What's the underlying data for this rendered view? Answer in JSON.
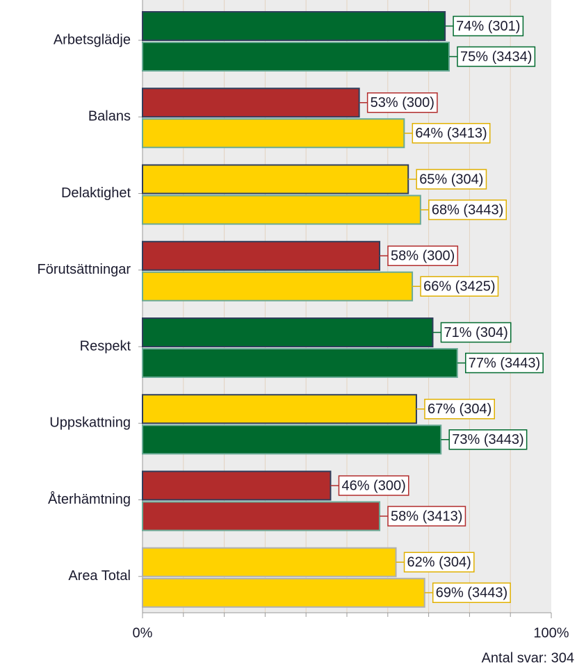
{
  "chart_data": {
    "type": "barh",
    "categories": [
      "Arbetsglädje",
      "Balans",
      "Delaktighet",
      "Förutsättningar",
      "Respekt",
      "Uppskattning",
      "Återhämtning",
      "Area Total"
    ],
    "series": [
      {
        "values": [
          74,
          53,
          65,
          58,
          71,
          67,
          46,
          62
        ],
        "value_labels": [
          "74% (301)",
          "53% (300)",
          "65% (304)",
          "58% (300)",
          "71% (304)",
          "67% (304)",
          "46% (300)",
          "62% (304)"
        ],
        "colors": [
          "#006a2e",
          "#b22c2c",
          "#ffd200",
          "#b22c2c",
          "#006a2e",
          "#ffd200",
          "#b22c2c",
          "#ffd200"
        ],
        "edgecolors": [
          "#2f3e5c",
          "#2f3e5c",
          "#2f3e5c",
          "#2f3e5c",
          "#2f3e5c",
          "#2f3e5c",
          "#2f3e5c",
          "#b0b0b0"
        ]
      },
      {
        "values": [
          75,
          64,
          68,
          66,
          77,
          73,
          58,
          69
        ],
        "value_labels": [
          "75% (3434)",
          "64% (3413)",
          "68% (3443)",
          "66% (3425)",
          "77% (3443)",
          "73% (3443)",
          "58% (3413)",
          "69% (3443)"
        ],
        "colors": [
          "#006a2e",
          "#ffd200",
          "#ffd200",
          "#ffd200",
          "#006a2e",
          "#006a2e",
          "#b22c2c",
          "#ffd200"
        ],
        "edgecolors": [
          "#6aaa96",
          "#6aaa96",
          "#6aaa96",
          "#6aaa96",
          "#6aaa96",
          "#6aaa96",
          "#6aaa96",
          "#b0b0b0"
        ]
      }
    ],
    "xlim": [
      0,
      100
    ],
    "xticks": [
      {
        "value": 0,
        "label": "0%"
      },
      {
        "value": 100,
        "label": "100%"
      }
    ],
    "xgrid": [
      10,
      20,
      30,
      40,
      50,
      60,
      70,
      80,
      90
    ],
    "footnote": "Antal svar: 304"
  }
}
